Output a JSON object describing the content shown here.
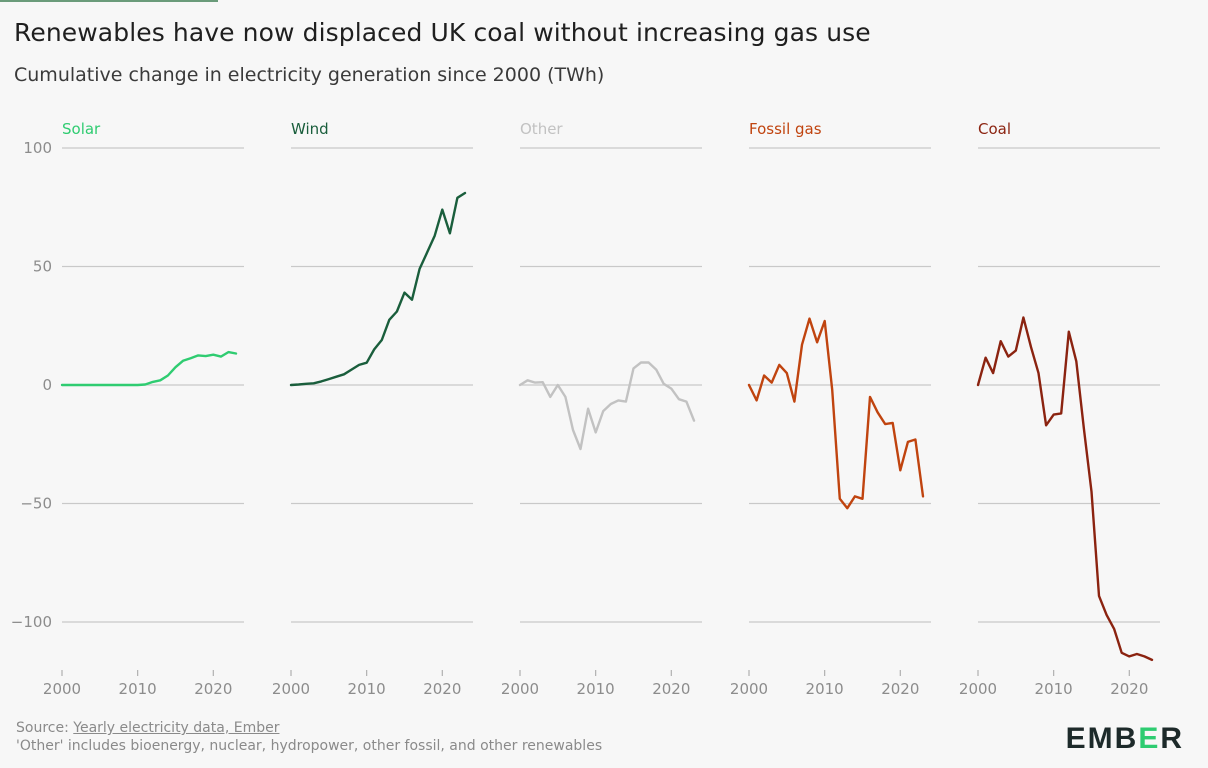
{
  "header": {
    "title": "Renewables have now displaced UK coal without increasing gas use",
    "subtitle": "Cumulative change in electricity generation since 2000 (TWh)"
  },
  "footer": {
    "source_prefix": "Source: ",
    "source_link": "Yearly electricity data, Ember",
    "note": "'Other' includes bioenergy, nuclear, hydropower, other fossil, and other renewables"
  },
  "logo": {
    "left": "EMB",
    "mid": "E",
    "right": "R"
  },
  "chart_data": {
    "type": "line",
    "layout": "small-multiples",
    "ylim": [
      -115,
      100
    ],
    "yticks": [
      100,
      50,
      0,
      -50,
      -100
    ],
    "ytick_labels": [
      "100",
      "50",
      "0",
      "−50",
      "−100"
    ],
    "xlim": [
      2000,
      2023
    ],
    "xticks": [
      2000,
      2010,
      2020
    ],
    "grid": true,
    "x": [
      2000,
      2001,
      2002,
      2003,
      2004,
      2005,
      2006,
      2007,
      2008,
      2009,
      2010,
      2011,
      2012,
      2013,
      2014,
      2015,
      2016,
      2017,
      2018,
      2019,
      2020,
      2021,
      2022,
      2023
    ],
    "series": [
      {
        "name": "Solar",
        "color": "#2fcc71",
        "values": [
          0,
          0,
          0,
          0,
          0,
          0,
          0,
          0,
          0,
          0,
          0,
          0.2,
          1.3,
          2,
          4,
          7.5,
          10.2,
          11.3,
          12.5,
          12.2,
          12.8,
          12,
          13.9,
          13.3
        ]
      },
      {
        "name": "Wind",
        "color": "#1a5e3c",
        "values": [
          0,
          0.2,
          0.5,
          0.7,
          1.5,
          2.5,
          3.5,
          4.5,
          6.5,
          8.5,
          9.4,
          15,
          19,
          27.5,
          31,
          39,
          36,
          49,
          56,
          63,
          74,
          64,
          79,
          81
        ]
      },
      {
        "name": "Other",
        "color": "#c2c2c2",
        "values": [
          0,
          2,
          1,
          1.2,
          -5,
          0,
          -5,
          -19,
          -27,
          -10,
          -20,
          -11,
          -8,
          -6.5,
          -7,
          7,
          9.5,
          9.5,
          6.5,
          0.5,
          -1.5,
          -6,
          -7,
          -15
        ]
      },
      {
        "name": "Fossil gas",
        "color": "#c0440f",
        "values": [
          0,
          -6.5,
          4,
          1,
          8.5,
          5,
          -7,
          17,
          28,
          18,
          27,
          -2,
          -48,
          -52,
          -47,
          -48,
          -5,
          -11.5,
          -16.5,
          -16,
          -36,
          -24,
          -23,
          -47
        ]
      },
      {
        "name": "Coal",
        "color": "#8b2310",
        "values": [
          0,
          11.5,
          5,
          18.5,
          12,
          14.5,
          28.5,
          16,
          5,
          -17,
          -12.5,
          -12,
          22.5,
          10,
          -18.5,
          -45,
          -89,
          -97,
          -103,
          -113,
          -114.5,
          -113.5,
          -114.5,
          -116
        ]
      }
    ]
  }
}
